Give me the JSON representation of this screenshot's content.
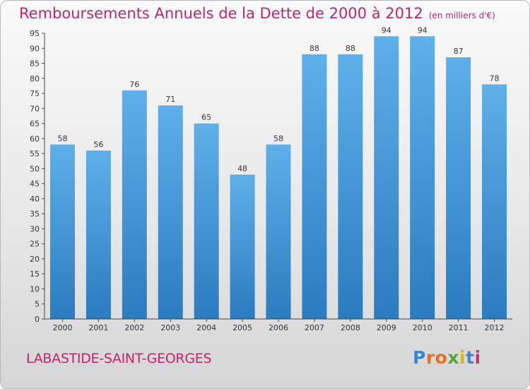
{
  "header": {
    "title": "Remboursements Annuels de la Dette de 2000 à 2012",
    "unit": "(en milliers d'€)"
  },
  "footer": {
    "commune": "LABASTIDE-SAINT-GEORGES",
    "logo_text": "Proxiti"
  },
  "colors": {
    "title": "#c0246d",
    "bar_top": "#5eb0ea",
    "bar_bottom": "#2a7cbf",
    "axis": "#444444",
    "grid": "#cccccc"
  },
  "chart_data": {
    "type": "bar",
    "title": "Remboursements Annuels de la Dette de 2000 à 2012",
    "xlabel": "",
    "ylabel": "",
    "categories": [
      "2000",
      "2001",
      "2002",
      "2003",
      "2004",
      "2005",
      "2006",
      "2007",
      "2008",
      "2009",
      "2010",
      "2011",
      "2012"
    ],
    "values": [
      58,
      56,
      76,
      71,
      65,
      48,
      58,
      88,
      88,
      94,
      94,
      87,
      78
    ],
    "y_ticks": [
      0,
      5,
      10,
      15,
      20,
      25,
      30,
      35,
      40,
      45,
      50,
      55,
      60,
      65,
      70,
      75,
      80,
      85,
      90,
      95
    ],
    "ylim": [
      0,
      95
    ],
    "grid": false,
    "legend": "none"
  }
}
